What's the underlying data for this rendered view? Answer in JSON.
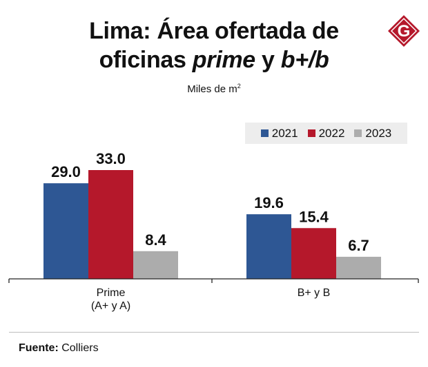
{
  "header": {
    "title_line1": "Lima: Área ofertada de",
    "title_line2_pre": "oficinas ",
    "title_line2_it1": "prime",
    "title_line2_mid": " y  ",
    "title_line2_it2": "b+/b",
    "subtitle_text": "Miles de m",
    "subtitle_sup": "2",
    "logo_letter": "G"
  },
  "source": {
    "label": "Fuente:",
    "value": " Colliers"
  },
  "colors": {
    "series_2021": "#2e5794",
    "series_2022": "#b5182b",
    "series_2023": "#acacac",
    "logo": "#b5182b"
  },
  "chart_data": {
    "type": "bar",
    "title": "Lima: Área ofertada de oficinas prime y b+/b",
    "ylabel": "Miles de m2",
    "categories": [
      [
        "Prime",
        "(A+ y A)"
      ],
      [
        "B+ y B"
      ]
    ],
    "series": [
      {
        "name": "2021",
        "values": [
          29.0,
          19.6
        ]
      },
      {
        "name": "2022",
        "values": [
          33.0,
          15.4
        ]
      },
      {
        "name": "2023",
        "values": [
          8.4,
          6.7
        ]
      }
    ],
    "data_labels": [
      [
        "29.0",
        "19.6"
      ],
      [
        "33.0",
        "15.4"
      ],
      [
        "8.4",
        "6.7"
      ]
    ],
    "ylim": [
      0,
      33
    ],
    "legend_position": "top-right",
    "grid": false
  }
}
